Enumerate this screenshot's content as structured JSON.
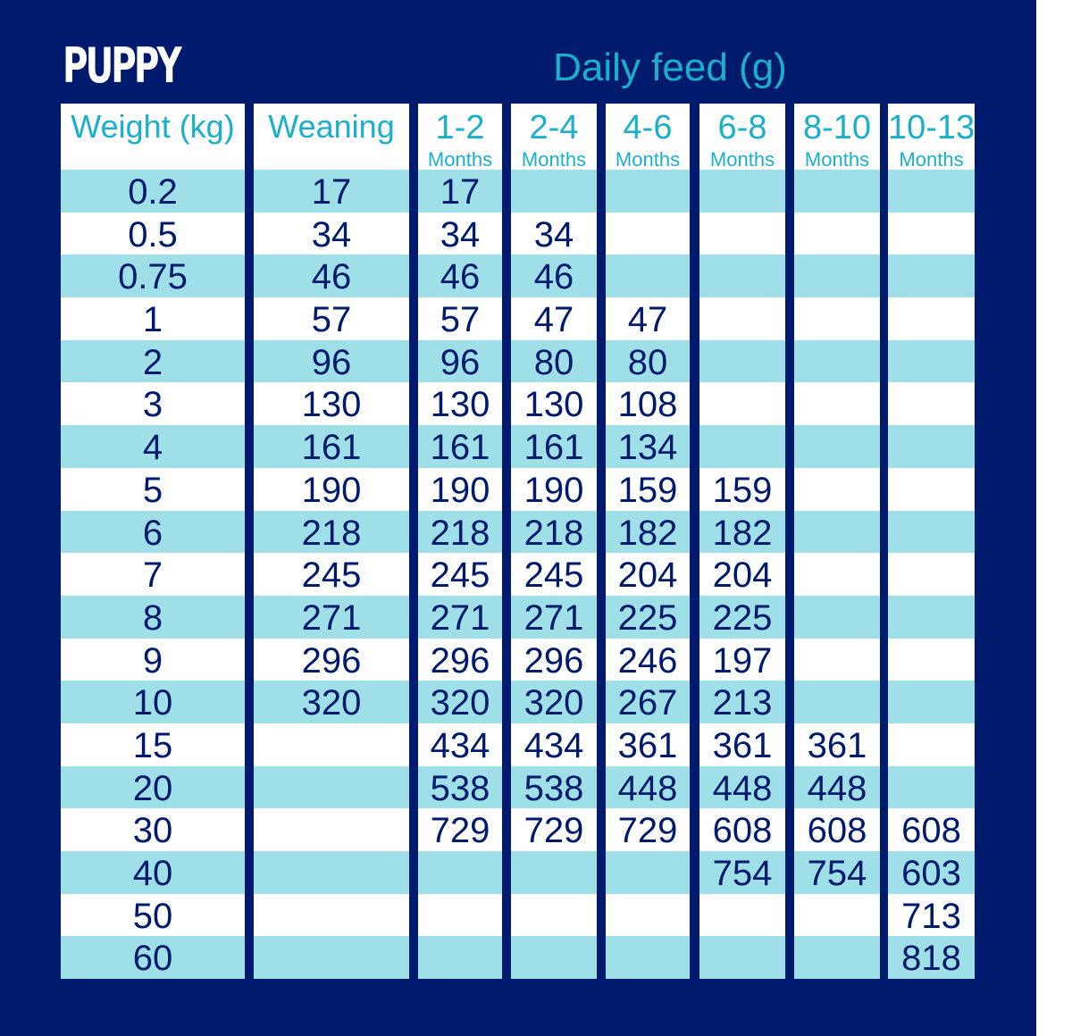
{
  "title": "PUPPY",
  "subtitle": "Daily feed (g)",
  "colors": {
    "background": "#001a6e",
    "stripe": "#9fdfe7",
    "header_text": "#1ab0cc",
    "cell_text": "#001a6e"
  },
  "columns": [
    {
      "label": "Weight (kg)",
      "sub": ""
    },
    {
      "label": "Weaning",
      "sub": ""
    },
    {
      "label": "1-2",
      "sub": "Months"
    },
    {
      "label": "2-4",
      "sub": "Months"
    },
    {
      "label": "4-6",
      "sub": "Months"
    },
    {
      "label": "6-8",
      "sub": "Months"
    },
    {
      "label": "8-10",
      "sub": "Months"
    },
    {
      "label": "10-13",
      "sub": "Months"
    }
  ],
  "rows": [
    [
      "0.2",
      "17",
      "17",
      "",
      "",
      "",
      "",
      ""
    ],
    [
      "0.5",
      "34",
      "34",
      "34",
      "",
      "",
      "",
      ""
    ],
    [
      "0.75",
      "46",
      "46",
      "46",
      "",
      "",
      "",
      ""
    ],
    [
      "1",
      "57",
      "57",
      "47",
      "47",
      "",
      "",
      ""
    ],
    [
      "2",
      "96",
      "96",
      "80",
      "80",
      "",
      "",
      ""
    ],
    [
      "3",
      "130",
      "130",
      "130",
      "108",
      "",
      "",
      ""
    ],
    [
      "4",
      "161",
      "161",
      "161",
      "134",
      "",
      "",
      ""
    ],
    [
      "5",
      "190",
      "190",
      "190",
      "159",
      "159",
      "",
      ""
    ],
    [
      "6",
      "218",
      "218",
      "218",
      "182",
      "182",
      "",
      ""
    ],
    [
      "7",
      "245",
      "245",
      "245",
      "204",
      "204",
      "",
      ""
    ],
    [
      "8",
      "271",
      "271",
      "271",
      "225",
      "225",
      "",
      ""
    ],
    [
      "9",
      "296",
      "296",
      "296",
      "246",
      "197",
      "",
      ""
    ],
    [
      "10",
      "320",
      "320",
      "320",
      "267",
      "213",
      "",
      ""
    ],
    [
      "15",
      "",
      "434",
      "434",
      "361",
      "361",
      "361",
      ""
    ],
    [
      "20",
      "",
      "538",
      "538",
      "448",
      "448",
      "448",
      ""
    ],
    [
      "30",
      "",
      "729",
      "729",
      "729",
      "608",
      "608",
      "608"
    ],
    [
      "40",
      "",
      "",
      "",
      "",
      "754",
      "754",
      "603"
    ],
    [
      "50",
      "",
      "",
      "",
      "",
      "",
      "",
      "713"
    ],
    [
      "60",
      "",
      "",
      "",
      "",
      "",
      "",
      "818"
    ]
  ]
}
